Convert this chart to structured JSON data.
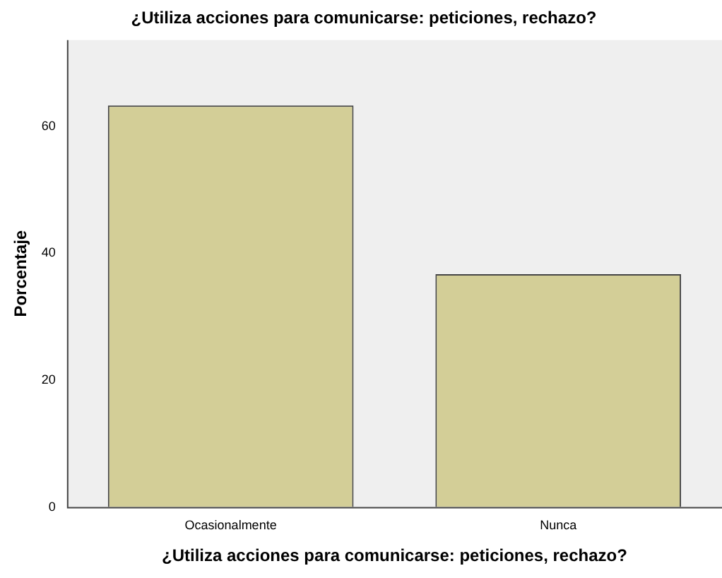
{
  "chart_data": {
    "type": "bar",
    "title": "¿Utiliza acciones para comunicarse: peticiones, rechazo?",
    "xlabel": "¿Utiliza acciones para comunicarse: peticiones, rechazo?",
    "ylabel": "Porcentaje",
    "categories": [
      "Ocasionalmente",
      "Nunca"
    ],
    "values": [
      63.3,
      36.7
    ],
    "color": "#d3ce97",
    "ylim": [
      0,
      73.6
    ],
    "yticks": [
      0,
      20,
      40,
      60
    ],
    "grid": false,
    "legend": false
  }
}
